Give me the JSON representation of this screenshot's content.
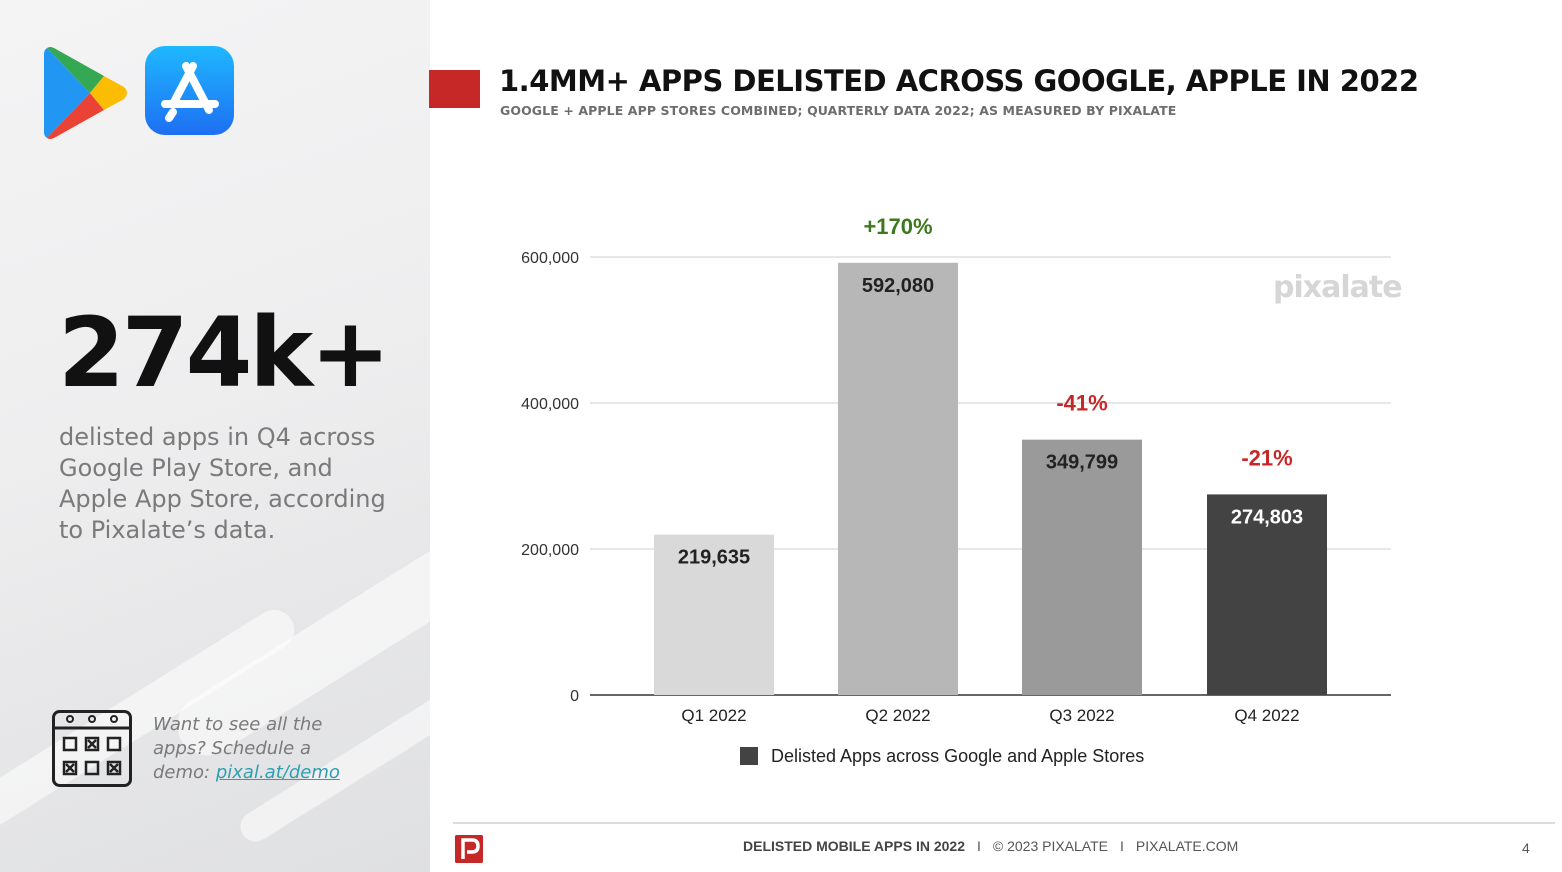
{
  "left": {
    "stat_value": "274k+",
    "stat_description": "delisted apps in Q4 across Google Play Store, and Apple App Store, according to Pixalate’s data.",
    "demo_text": "Want to see all the apps? Schedule a demo: ",
    "demo_link": "pixal.at/demo"
  },
  "header": {
    "title": "1.4MM+ APPS DELISTED ACROSS GOOGLE, APPLE IN 2022",
    "subtitle": "GOOGLE + APPLE APP STORES COMBINED; QUARTERLY DATA 2022; AS MEASURED BY PIXALATE",
    "accent_color": "#c62828"
  },
  "watermark": "pixalate",
  "chart_data": {
    "type": "bar",
    "categories": [
      "Q1 2022",
      "Q2 2022",
      "Q3 2022",
      "Q4 2022"
    ],
    "series": [
      {
        "name": "Delisted Apps across Google and Apple Stores",
        "values": [
          219635,
          592080,
          349799,
          274803
        ]
      }
    ],
    "data_labels": [
      "219,635",
      "592,080",
      "349,799",
      "274,803"
    ],
    "bar_colors": [
      "#d9d9d9",
      "#b7b7b7",
      "#9a9a9a",
      "#434343"
    ],
    "label_colors": [
      "#222222",
      "#222222",
      "#222222",
      "#ffffff"
    ],
    "change_labels": [
      "",
      "+170%",
      "-41%",
      "-21%"
    ],
    "change_colors": [
      "",
      "#3d7a1d",
      "#c62828",
      "#c62828"
    ],
    "y_ticks": [
      0,
      200000,
      400000,
      600000
    ],
    "y_tick_labels": [
      "0",
      "200,000",
      "400,000",
      "600,000"
    ],
    "ylim": [
      0,
      600000
    ],
    "grid": true,
    "legend_position": "bottom",
    "legend_color": "#434343"
  },
  "footer": {
    "report": "DELISTED MOBILE APPS IN 2022",
    "separator": "I",
    "copyright": "© 2023 PIXALATE",
    "site": "PIXALATE.COM",
    "page": "4"
  }
}
